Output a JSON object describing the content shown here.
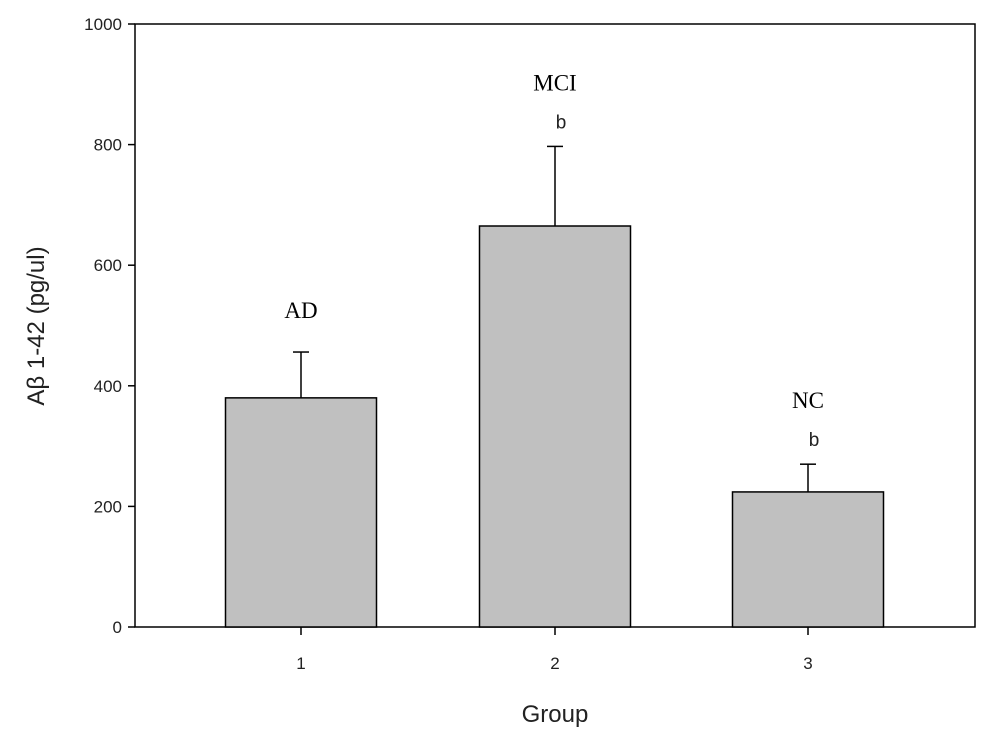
{
  "chart_data": {
    "type": "bar",
    "xlabel": "Group",
    "ylabel": "Aβ 1-42 (pg/ul)",
    "ylim": [
      0,
      1000
    ],
    "yticks": [
      0,
      200,
      400,
      600,
      800,
      1000
    ],
    "grid": false,
    "categories": [
      "1",
      "2",
      "3"
    ],
    "values": [
      380,
      665,
      224
    ],
    "error_upper": [
      456,
      797,
      270
    ],
    "group_labels": [
      "AD",
      "MCI",
      "NC"
    ],
    "significance": [
      "",
      "b",
      "b"
    ],
    "bar_color": "#c0c0c0"
  }
}
